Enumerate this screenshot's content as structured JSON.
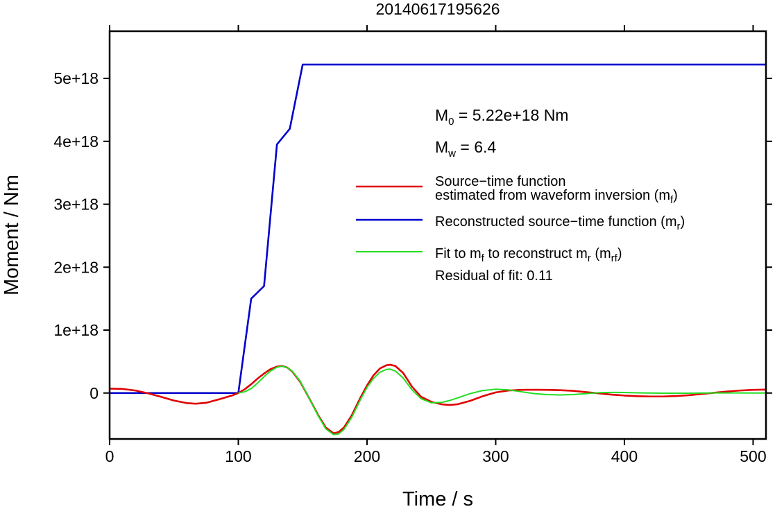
{
  "chart_data": {
    "type": "line",
    "title": "20140617195626",
    "xlabel": "Time / s",
    "ylabel": "Moment / Nm",
    "xlim": [
      0,
      510
    ],
    "ylim": [
      -7.3e+17,
      5.75e+18
    ],
    "xticks": [
      0,
      100,
      200,
      300,
      400,
      500
    ],
    "xtick_labels": [
      "0",
      "100",
      "200",
      "300",
      "400",
      "500"
    ],
    "yticks": [
      0,
      1e+18,
      2e+18,
      3e+18,
      4e+18,
      5e+18
    ],
    "ytick_labels": [
      "0",
      "1e+18",
      "2e+18",
      "3e+18",
      "4e+18",
      "5e+18"
    ],
    "grid": false,
    "legend_position": "right",
    "annotations": {
      "m0": {
        "base": "M",
        "sub": "0",
        "rest": " = 5.22e+18 Nm"
      },
      "mw": {
        "base": "M",
        "sub": "w",
        "rest": " = 6.4"
      },
      "residual": "Residual of fit: 0.11"
    },
    "legend": [
      {
        "line1": "Source−time function",
        "line2_pre": "estimated from waveform inversion (m",
        "line2_sub": "f",
        "line2_post": ")",
        "color": "#e00000"
      },
      {
        "pre": "Reconstructed source−time function (m",
        "sub": "r",
        "post": ")",
        "color": "#0000cc"
      },
      {
        "pre": "Fit to m",
        "sub1": "f",
        "mid": " to reconstruct m",
        "sub2": "r",
        "mid2": " (m",
        "sub3": "rf",
        "post": ")",
        "color": "#22dd22"
      }
    ],
    "series": [
      {
        "color": "#e00000",
        "x": [
          0,
          10,
          20,
          30,
          40,
          50,
          60,
          67,
          75,
          85,
          95,
          100,
          105,
          110,
          115,
          120,
          125,
          130,
          134,
          138,
          142,
          148,
          155,
          162,
          168,
          174,
          178,
          182,
          188,
          195,
          200,
          205,
          210,
          215,
          218,
          222,
          228,
          235,
          242,
          250,
          258,
          264,
          270,
          280,
          290,
          300,
          310,
          320,
          330,
          340,
          350,
          360,
          370,
          380,
          390,
          400,
          410,
          420,
          430,
          440,
          450,
          460,
          470,
          480,
          490,
          500,
          510
        ],
        "y": [
          7e+16,
          6.5e+16,
          4e+16,
          -5000000000000000.0,
          -6e+16,
          -1.2e+17,
          -1.6e+17,
          -1.7e+17,
          -1.55e+17,
          -1e+17,
          -4e+16,
          0,
          6e+16,
          1.4e+17,
          2.3e+17,
          3.1e+17,
          3.8e+17,
          4.2e+17,
          4.3e+17,
          4.05e+17,
          3.4e+17,
          1.8e+17,
          -8e+16,
          -3.5e+17,
          -5.5e+17,
          -6.4e+17,
          -6.2e+17,
          -5.5e+17,
          -3.6e+17,
          -7e+16,
          1.2e+17,
          2.8e+17,
          3.9e+17,
          4.4e+17,
          4.5e+17,
          4.3e+17,
          3.2e+17,
          1e+17,
          -6e+16,
          -1.4e+17,
          -1.8e+17,
          -1.9e+17,
          -1.8e+17,
          -1.25e+17,
          -5e+16,
          1e+16,
          4e+16,
          5e+16,
          5.2e+16,
          5e+16,
          4.5e+16,
          3.5e+16,
          1.5e+16,
          -5000000000000000.0,
          -2.5e+16,
          -4e+16,
          -5e+16,
          -5.5e+16,
          -5.5e+16,
          -4.8e+16,
          -3.5e+16,
          -1.5e+16,
          5000000000000000.0,
          2.5e+16,
          4e+16,
          5e+16,
          5.5e+16
        ]
      },
      {
        "color": "#0000cc",
        "x": [
          0,
          100,
          110,
          120,
          130,
          140,
          150,
          510
        ],
        "y": [
          0,
          0,
          1.5e+18,
          1.7e+18,
          3.95e+18,
          4.2e+18,
          5.22e+18,
          5.22e+18
        ]
      },
      {
        "color": "#22dd22",
        "x": [
          100,
          105,
          110,
          115,
          120,
          125,
          130,
          134,
          138,
          142,
          148,
          155,
          162,
          168,
          174,
          178,
          182,
          188,
          195,
          200,
          205,
          210,
          215,
          218,
          222,
          228,
          235,
          242,
          250,
          258,
          264,
          270,
          280,
          290,
          300,
          310,
          320,
          330,
          340,
          350,
          360,
          370,
          380,
          390,
          400,
          410,
          420,
          430,
          440,
          450,
          460,
          470,
          480,
          490,
          500,
          510
        ],
        "y": [
          0,
          2e+16,
          7e+16,
          1.6e+17,
          2.6e+17,
          3.5e+17,
          4.1e+17,
          4.25e+17,
          4.05e+17,
          3.45e+17,
          1.9e+17,
          -8e+16,
          -3.6e+17,
          -5.7e+17,
          -6.6e+17,
          -6.5e+17,
          -5.8e+17,
          -3.9e+17,
          -1e+17,
          9e+16,
          2.3e+17,
          3.3e+17,
          3.75e+17,
          3.8e+17,
          3.5e+17,
          2.4e+17,
          5e+16,
          -9e+16,
          -1.55e+17,
          -1.5e+17,
          -1.2e+17,
          -8e+16,
          -1e+16,
          4e+16,
          6e+16,
          5e+16,
          2e+16,
          -1e+16,
          -2.5e+16,
          -3e+16,
          -2.5e+16,
          -1e+16,
          5000000000000000.0,
          1e+16,
          8000000000000000.0,
          3000000000000000.0,
          0,
          -3000000000000000.0,
          -3000000000000000.0,
          -2000000000000000.0,
          0,
          2000000000000000.0,
          2000000000000000.0,
          1000000000000000.0,
          0,
          0
        ]
      }
    ]
  }
}
